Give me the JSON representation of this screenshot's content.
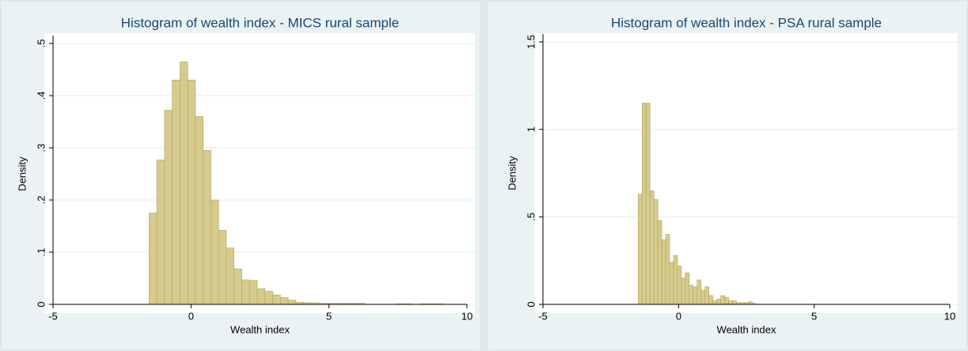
{
  "chart_data": [
    {
      "type": "histogram",
      "title": "Histogram of wealth index - MICS rural sample",
      "xlabel": "Wealth index",
      "ylabel": "Density",
      "color": "#d6cb8c",
      "grid": true,
      "bins": [
        -1.52,
        -1.24,
        -0.96,
        -0.68,
        -0.4,
        -0.12,
        0.16,
        0.44,
        0.72,
        1.0,
        1.28,
        1.56,
        1.84,
        2.12,
        2.4,
        2.68,
        2.96,
        3.24,
        3.52,
        3.8,
        4.08,
        4.36,
        4.64,
        4.92,
        5.2,
        5.48,
        5.76,
        6.04,
        6.32,
        6.6,
        6.88,
        7.16,
        7.44,
        7.72,
        8.0,
        8.28,
        8.56,
        8.84,
        9.12,
        9.4
      ],
      "values": [
        0.175,
        0.277,
        0.372,
        0.43,
        0.465,
        0.43,
        0.36,
        0.295,
        0.2,
        0.142,
        0.108,
        0.068,
        0.047,
        0.046,
        0.03,
        0.025,
        0.018,
        0.013,
        0.008,
        0.004,
        0.003,
        0.003,
        0.002,
        0.002,
        0.002,
        0.002,
        0.002,
        0.002,
        0,
        0,
        0,
        0,
        0.001,
        0.001,
        0,
        0.001,
        0.001,
        0.001,
        0
      ],
      "xlim": [
        -5,
        10
      ],
      "xticks": [
        -5,
        0,
        5,
        10
      ],
      "ylim": [
        0,
        0.5
      ],
      "yticks": [
        0,
        {
          "value": 0.1,
          "label": ".1"
        },
        {
          "value": 0.2,
          "label": ".2"
        },
        {
          "value": 0.3,
          "label": ".3"
        },
        {
          "value": 0.4,
          "label": ".4"
        },
        {
          "value": 0.5,
          "label": ".5"
        }
      ]
    },
    {
      "type": "histogram",
      "title": "Histogram of wealth index - PSA rural sample",
      "xlabel": "Wealth index",
      "ylabel": "Density",
      "color": "#d6cb8c",
      "grid": true,
      "bins": [
        -1.49,
        -1.345,
        -1.2,
        -1.055,
        -0.91,
        -0.765,
        -0.62,
        -0.475,
        -0.33,
        -0.185,
        -0.04,
        0.105,
        0.25,
        0.395,
        0.54,
        0.685,
        0.83,
        0.975,
        1.12,
        1.265,
        1.41,
        1.555,
        1.7,
        1.845,
        1.99,
        2.135,
        2.28,
        2.425,
        2.57,
        2.715,
        2.86
      ],
      "values": [
        0.63,
        1.15,
        1.15,
        0.65,
        0.6,
        0.48,
        0.37,
        0.4,
        0.24,
        0.28,
        0.22,
        0.15,
        0.18,
        0.11,
        0.1,
        0.14,
        0.08,
        0.1,
        0.05,
        0.02,
        0.03,
        0.05,
        0.04,
        0.02,
        0.02,
        0.01,
        0.01,
        0.01,
        0.015,
        0.005
      ],
      "xlim": [
        -5,
        10
      ],
      "xticks": [
        -5,
        0,
        5,
        10
      ],
      "ylim": [
        0,
        1.5
      ],
      "yticks": [
        0,
        {
          "value": 0.5,
          "label": ".5"
        },
        1,
        1.5
      ]
    }
  ]
}
